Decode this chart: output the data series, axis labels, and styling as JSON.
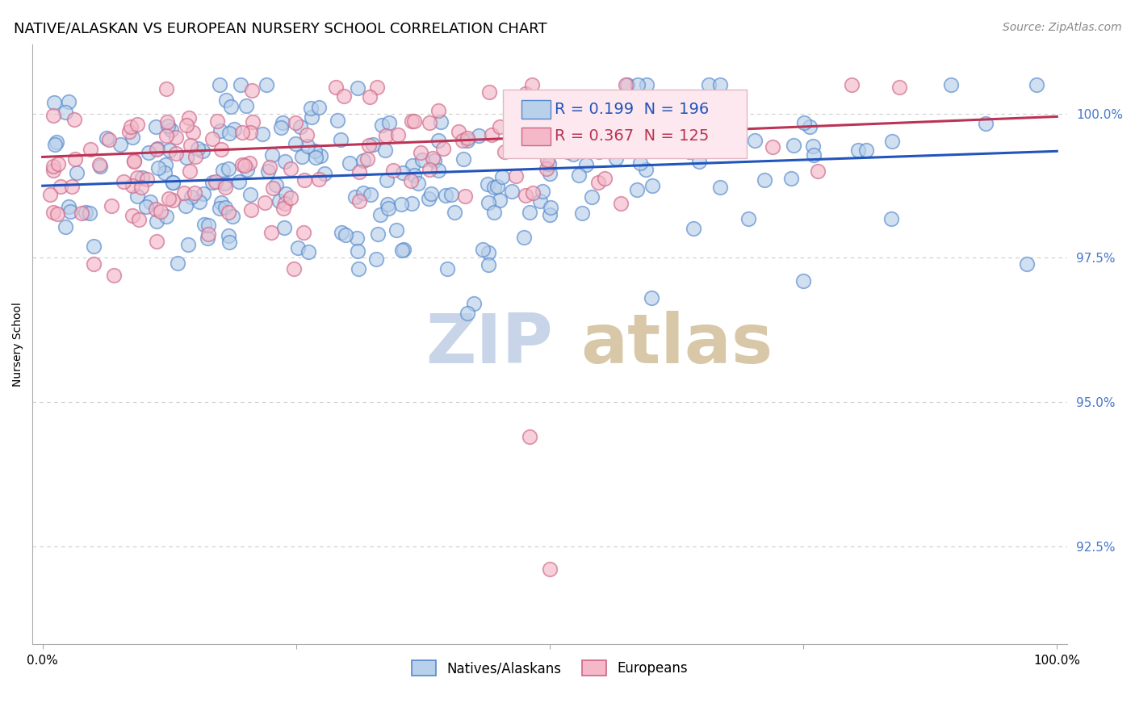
{
  "title": "NATIVE/ALASKAN VS EUROPEAN NURSERY SCHOOL CORRELATION CHART",
  "source": "Source: ZipAtlas.com",
  "ylabel": "Nursery School",
  "ytick_labels": [
    "92.5%",
    "95.0%",
    "97.5%",
    "100.0%"
  ],
  "ytick_values": [
    0.925,
    0.95,
    0.975,
    1.0
  ],
  "xlim": [
    -0.01,
    1.01
  ],
  "ylim": [
    0.908,
    1.012
  ],
  "r_native": 0.199,
  "n_native": 196,
  "r_european": 0.367,
  "n_european": 125,
  "native_color": "#b8d0ea",
  "european_color": "#f4b8c8",
  "native_edge_color": "#5588cc",
  "european_edge_color": "#cc6688",
  "native_line_color": "#2255bb",
  "european_line_color": "#bb3355",
  "legend_face_color": "#fce8ee",
  "legend_edge_color": "#e0b8c0",
  "watermark_zip_color": "#c8d4e8",
  "watermark_atlas_color": "#d8c8a8",
  "background_color": "#ffffff",
  "grid_color": "#cccccc",
  "title_fontsize": 13,
  "axis_label_fontsize": 10,
  "tick_fontsize": 11,
  "legend_fontsize": 14,
  "source_fontsize": 10,
  "ytick_color": "#4477cc"
}
